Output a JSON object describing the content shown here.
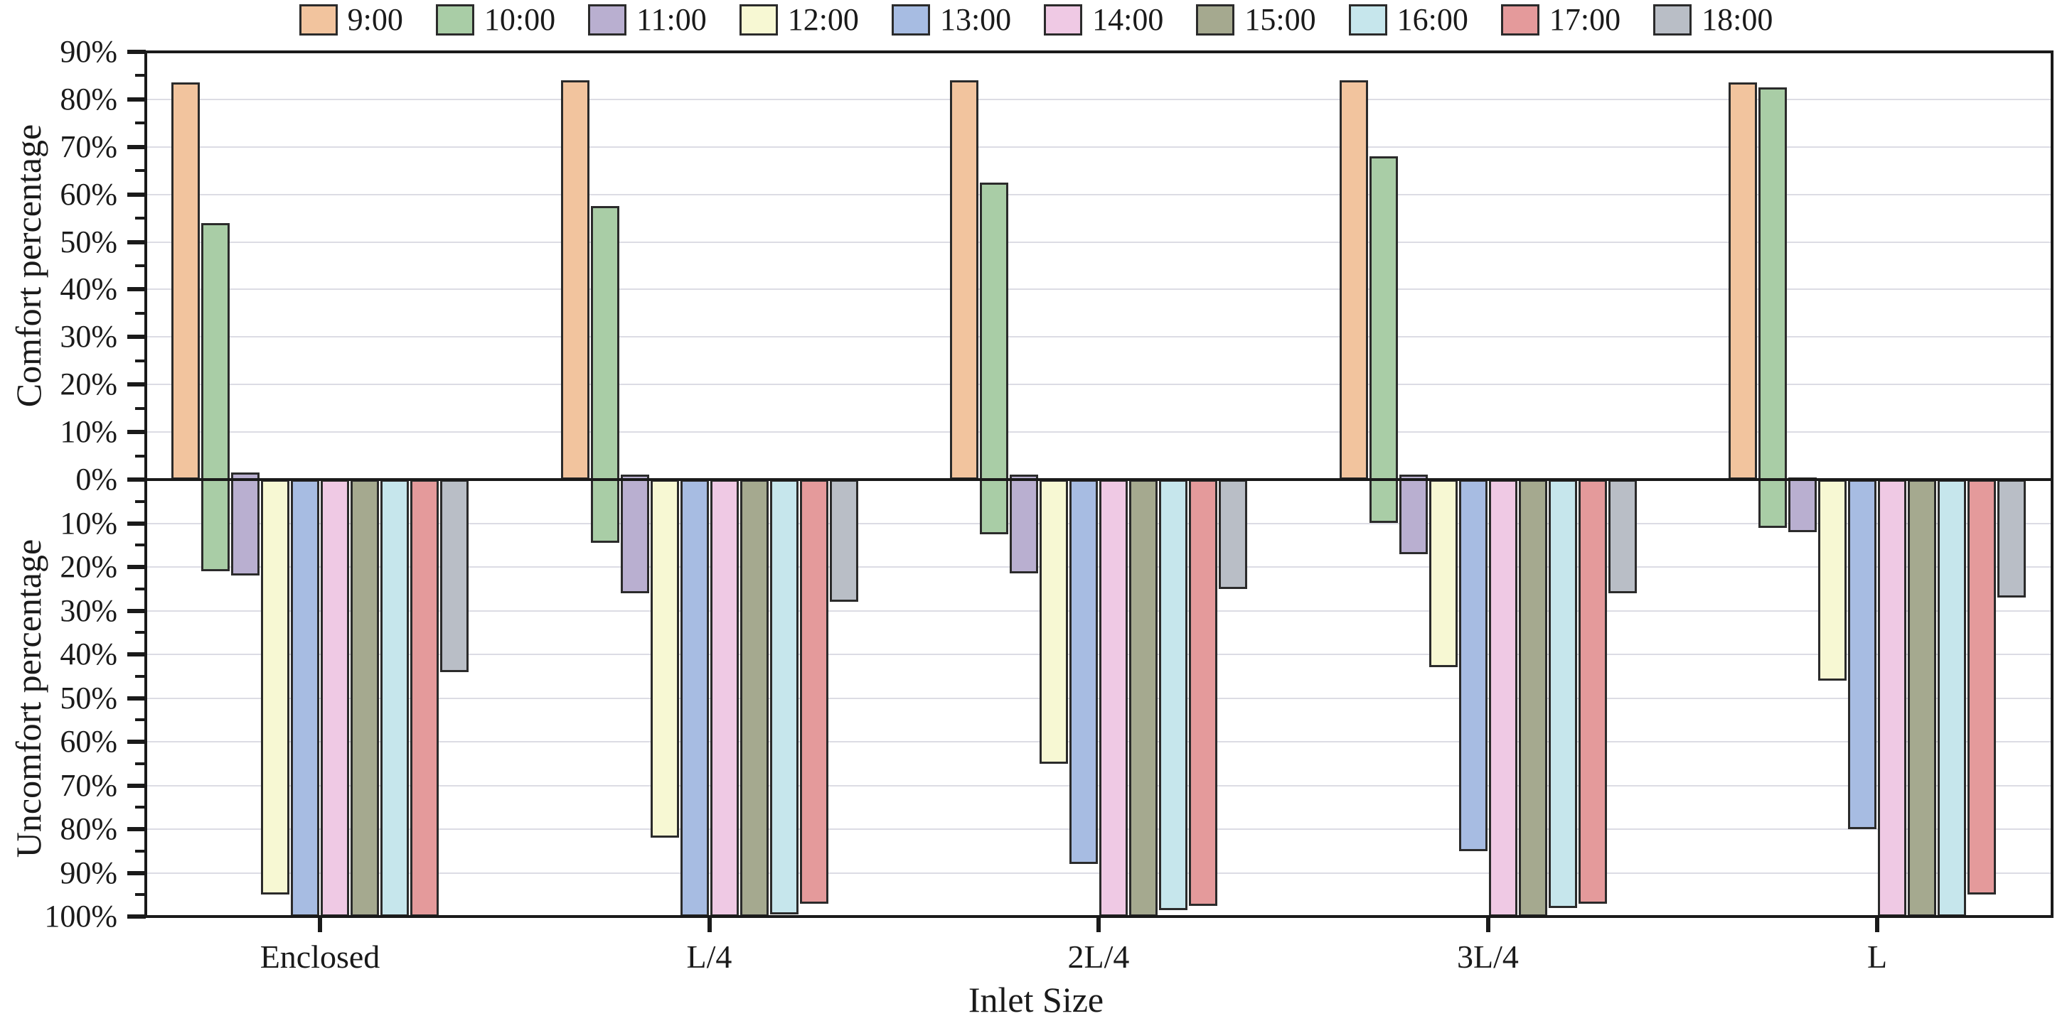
{
  "chart_data": {
    "type": "bar",
    "title": "",
    "xlabel": "Inlet Size",
    "ylabel_top": "Comfort percentage",
    "ylabel_bottom": "Uncomfort percentage",
    "legend_position": "top",
    "grid": true,
    "axis_color": "#1a1a1a",
    "grid_color": "#dcdce4",
    "bar_border_color": "#2b2b2b",
    "y_top_axis": {
      "min": 0,
      "max": 90,
      "step": 10,
      "tick_format": "percent"
    },
    "y_bottom_axis": {
      "min": 0,
      "max": 100,
      "step": 10,
      "tick_format": "percent"
    },
    "categories": [
      "Enclosed",
      "L/4",
      "2L/4",
      "3L/4",
      "L"
    ],
    "series": [
      {
        "name": "9:00",
        "color": "#f2c49e",
        "comfort": [
          83.5,
          84,
          84,
          84,
          83.5
        ],
        "uncomfort": [
          0,
          0,
          0,
          0,
          0
        ]
      },
      {
        "name": "10:00",
        "color": "#a9cda6",
        "comfort": [
          54,
          57.5,
          62.5,
          68,
          82.5
        ],
        "uncomfort": [
          21,
          14.5,
          12.5,
          10,
          11
        ]
      },
      {
        "name": "11:00",
        "color": "#b9afd0",
        "comfort": [
          1.5,
          1,
          1,
          1,
          0.5
        ],
        "uncomfort": [
          22,
          26,
          21.5,
          17,
          12
        ]
      },
      {
        "name": "12:00",
        "color": "#f7f8d3",
        "comfort": [
          0,
          0,
          0,
          0,
          0
        ],
        "uncomfort": [
          95,
          82,
          65,
          43,
          46
        ]
      },
      {
        "name": "13:00",
        "color": "#a7bce2",
        "comfort": [
          0,
          0,
          0,
          0,
          0
        ],
        "uncomfort": [
          100,
          100,
          88,
          85,
          80
        ]
      },
      {
        "name": "14:00",
        "color": "#efc9e4",
        "comfort": [
          0,
          0,
          0,
          0,
          0
        ],
        "uncomfort": [
          100,
          100,
          100,
          100,
          100
        ]
      },
      {
        "name": "15:00",
        "color": "#a5a98f",
        "comfort": [
          0,
          0,
          0,
          0,
          0
        ],
        "uncomfort": [
          100,
          100,
          100,
          100,
          100
        ]
      },
      {
        "name": "16:00",
        "color": "#c6e6ec",
        "comfort": [
          0,
          0,
          0,
          0,
          0
        ],
        "uncomfort": [
          100,
          99.5,
          98.5,
          98,
          100
        ]
      },
      {
        "name": "17:00",
        "color": "#e49a9b",
        "comfort": [
          0,
          0,
          0,
          0,
          0
        ],
        "uncomfort": [
          100,
          97,
          97.5,
          97,
          95
        ]
      },
      {
        "name": "18:00",
        "color": "#b9bec6",
        "comfort": [
          0,
          0,
          0,
          0,
          0
        ],
        "uncomfort": [
          44,
          28,
          25,
          26,
          27
        ]
      }
    ]
  }
}
